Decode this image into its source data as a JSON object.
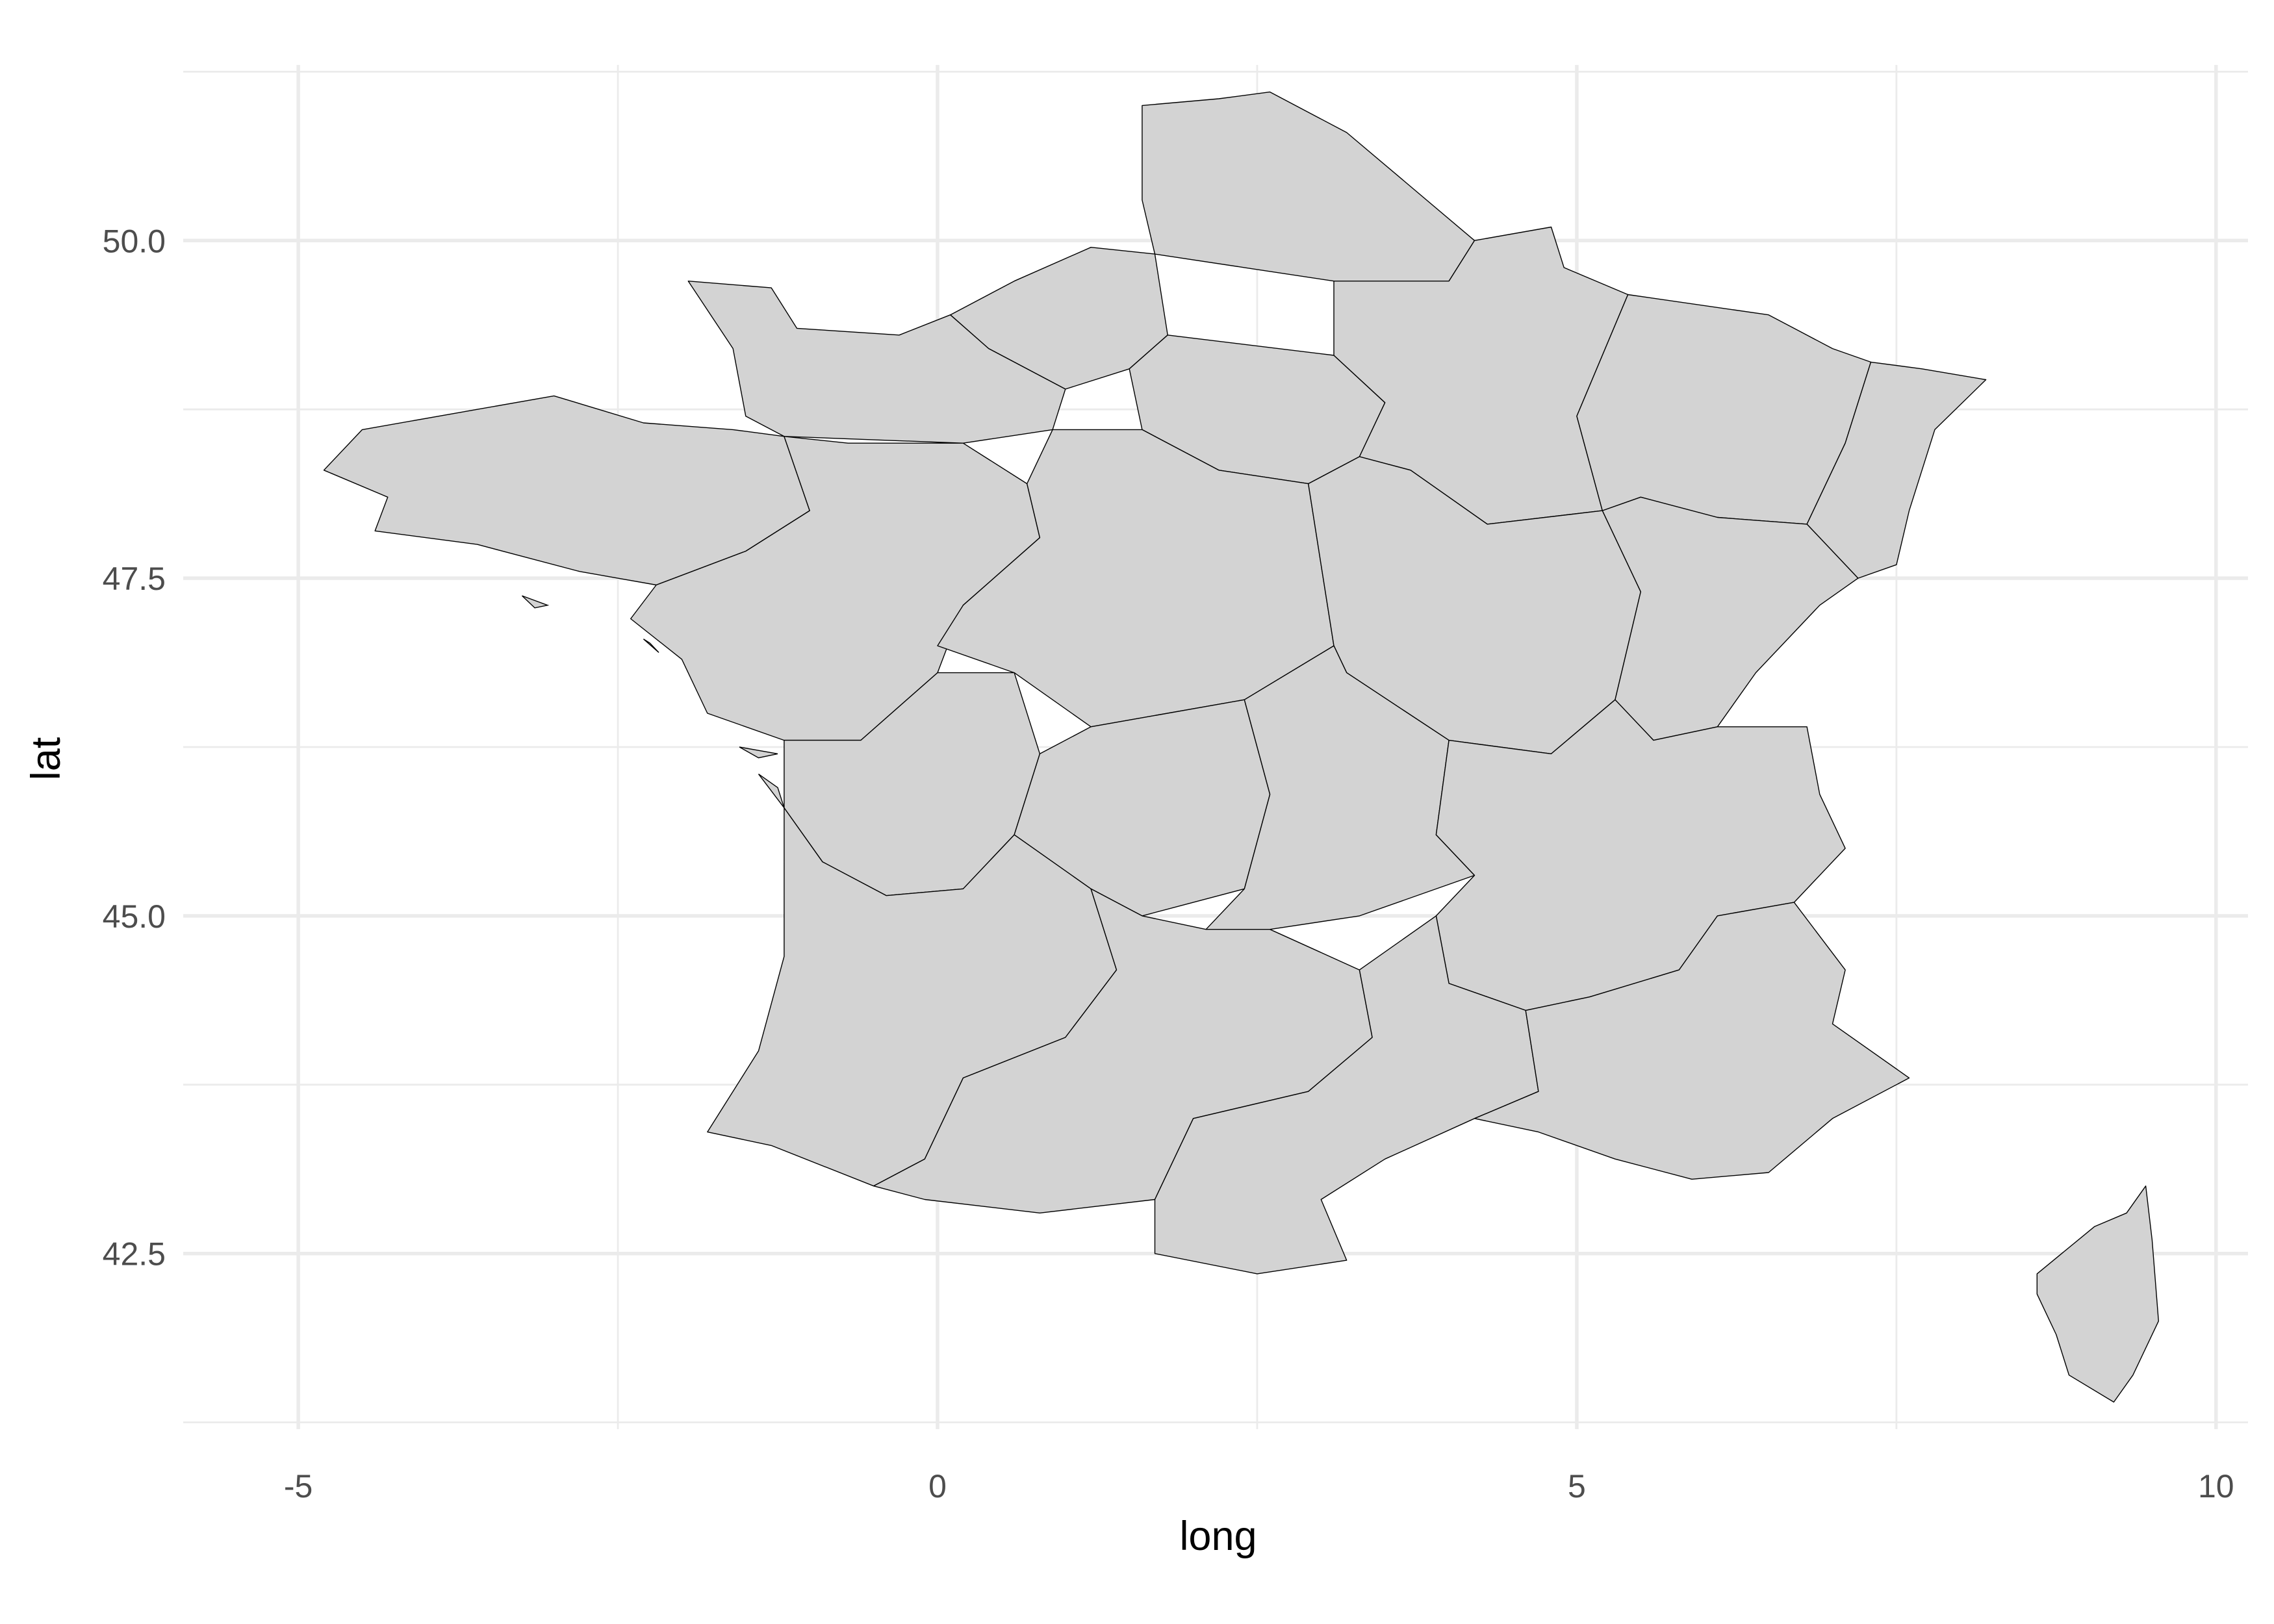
{
  "chart_data": {
    "type": "map",
    "title": "",
    "xlabel": "long",
    "ylabel": "lat",
    "xlim": [
      -5.9,
      10.25
    ],
    "ylim": [
      41.2,
      51.3
    ],
    "x_ticks": [
      -5,
      0,
      5,
      10
    ],
    "x_tick_labels": [
      "-5",
      "0",
      "5",
      "10"
    ],
    "x_minor_ticks": [
      -2.5,
      2.5,
      7.5
    ],
    "y_ticks": [
      42.5,
      45.0,
      47.5,
      50.0
    ],
    "y_tick_labels": [
      "42.5",
      "45.0",
      "47.5",
      "50.0"
    ],
    "y_minor_ticks": [
      41.25,
      43.75,
      46.25,
      48.75,
      51.25
    ],
    "grid": true,
    "fill_color": "#d3d3d3",
    "border_color": "#000000",
    "regions": [
      {
        "id": "nord-picardie",
        "outline": [
          [
            1.6,
            51.0
          ],
          [
            2.2,
            51.05
          ],
          [
            2.6,
            51.1
          ],
          [
            3.2,
            50.8
          ],
          [
            3.7,
            50.4
          ],
          [
            4.2,
            50.0
          ],
          [
            4.0,
            49.7
          ],
          [
            3.1,
            49.7
          ],
          [
            2.4,
            49.8
          ],
          [
            1.7,
            49.9
          ],
          [
            1.6,
            50.3
          ],
          [
            1.6,
            51.0
          ]
        ]
      },
      {
        "id": "haute-normandie",
        "outline": [
          [
            0.1,
            49.45
          ],
          [
            0.6,
            49.7
          ],
          [
            1.2,
            49.95
          ],
          [
            1.7,
            49.9
          ],
          [
            1.8,
            49.3
          ],
          [
            1.5,
            49.05
          ],
          [
            1.0,
            48.9
          ],
          [
            0.4,
            49.2
          ],
          [
            0.1,
            49.45
          ]
        ]
      },
      {
        "id": "basse-normandie",
        "outline": [
          [
            -1.95,
            49.7
          ],
          [
            -1.3,
            49.65
          ],
          [
            -1.1,
            49.35
          ],
          [
            -0.3,
            49.3
          ],
          [
            0.1,
            49.45
          ],
          [
            0.4,
            49.2
          ],
          [
            1.0,
            48.9
          ],
          [
            0.9,
            48.6
          ],
          [
            0.2,
            48.5
          ],
          [
            -1.2,
            48.55
          ],
          [
            -1.5,
            48.7
          ],
          [
            -1.6,
            49.2
          ],
          [
            -1.95,
            49.7
          ]
        ]
      },
      {
        "id": "bretagne",
        "outline": [
          [
            -1.6,
            48.6
          ],
          [
            -2.3,
            48.65
          ],
          [
            -3.0,
            48.85
          ],
          [
            -3.6,
            48.75
          ],
          [
            -4.5,
            48.6
          ],
          [
            -4.8,
            48.3
          ],
          [
            -4.3,
            48.1
          ],
          [
            -4.4,
            47.85
          ],
          [
            -3.6,
            47.75
          ],
          [
            -2.8,
            47.55
          ],
          [
            -2.2,
            47.45
          ],
          [
            -1.5,
            47.7
          ],
          [
            -1.0,
            48.0
          ],
          [
            -1.2,
            48.55
          ],
          [
            -1.6,
            48.6
          ]
        ]
      },
      {
        "id": "pays-de-la-loire",
        "outline": [
          [
            -1.2,
            48.55
          ],
          [
            -1.0,
            48.0
          ],
          [
            -1.5,
            47.7
          ],
          [
            -2.2,
            47.45
          ],
          [
            -2.4,
            47.2
          ],
          [
            -2.0,
            46.9
          ],
          [
            -1.8,
            46.5
          ],
          [
            -1.2,
            46.3
          ],
          [
            -0.6,
            46.3
          ],
          [
            0.0,
            46.8
          ],
          [
            0.2,
            47.3
          ],
          [
            0.8,
            47.8
          ],
          [
            0.7,
            48.2
          ],
          [
            0.2,
            48.5
          ],
          [
            -0.7,
            48.5
          ],
          [
            -1.2,
            48.55
          ]
        ]
      },
      {
        "id": "ile-de-france",
        "outline": [
          [
            1.5,
            49.05
          ],
          [
            1.8,
            49.3
          ],
          [
            3.1,
            49.15
          ],
          [
            3.5,
            48.8
          ],
          [
            3.3,
            48.4
          ],
          [
            2.9,
            48.2
          ],
          [
            2.2,
            48.3
          ],
          [
            1.6,
            48.6
          ],
          [
            1.5,
            49.05
          ]
        ]
      },
      {
        "id": "centre",
        "outline": [
          [
            0.9,
            48.6
          ],
          [
            1.6,
            48.6
          ],
          [
            2.2,
            48.3
          ],
          [
            2.9,
            48.2
          ],
          [
            3.0,
            47.6
          ],
          [
            3.1,
            47.0
          ],
          [
            2.4,
            46.6
          ],
          [
            1.2,
            46.4
          ],
          [
            0.6,
            46.8
          ],
          [
            0.0,
            47.0
          ],
          [
            0.2,
            47.3
          ],
          [
            0.8,
            47.8
          ],
          [
            0.7,
            48.2
          ],
          [
            0.9,
            48.6
          ]
        ]
      },
      {
        "id": "champagne-ardenne",
        "outline": [
          [
            4.2,
            50.0
          ],
          [
            4.8,
            50.1
          ],
          [
            4.9,
            49.8
          ],
          [
            5.4,
            49.6
          ],
          [
            5.0,
            48.7
          ],
          [
            5.2,
            48.0
          ],
          [
            4.3,
            47.9
          ],
          [
            3.7,
            48.3
          ],
          [
            3.3,
            48.4
          ],
          [
            3.5,
            48.8
          ],
          [
            3.1,
            49.15
          ],
          [
            3.1,
            49.7
          ],
          [
            4.0,
            49.7
          ],
          [
            4.2,
            50.0
          ]
        ]
      },
      {
        "id": "lorraine",
        "outline": [
          [
            5.4,
            49.6
          ],
          [
            6.5,
            49.45
          ],
          [
            7.0,
            49.2
          ],
          [
            7.3,
            49.1
          ],
          [
            7.1,
            48.5
          ],
          [
            6.8,
            47.9
          ],
          [
            6.1,
            47.95
          ],
          [
            5.5,
            48.1
          ],
          [
            5.2,
            48.0
          ],
          [
            5.0,
            48.7
          ],
          [
            5.4,
            49.6
          ]
        ]
      },
      {
        "id": "alsace",
        "outline": [
          [
            7.3,
            49.1
          ],
          [
            7.7,
            49.05
          ],
          [
            8.2,
            48.97
          ],
          [
            7.8,
            48.6
          ],
          [
            7.6,
            48.0
          ],
          [
            7.5,
            47.6
          ],
          [
            7.2,
            47.5
          ],
          [
            6.8,
            47.9
          ],
          [
            7.1,
            48.5
          ],
          [
            7.3,
            49.1
          ]
        ]
      },
      {
        "id": "bourgogne",
        "outline": [
          [
            2.9,
            48.2
          ],
          [
            3.3,
            48.4
          ],
          [
            3.7,
            48.3
          ],
          [
            4.3,
            47.9
          ],
          [
            5.2,
            48.0
          ],
          [
            5.5,
            47.4
          ],
          [
            5.3,
            46.6
          ],
          [
            4.8,
            46.2
          ],
          [
            4.0,
            46.3
          ],
          [
            3.2,
            46.8
          ],
          [
            3.1,
            47.0
          ],
          [
            3.0,
            47.6
          ],
          [
            2.9,
            48.2
          ]
        ]
      },
      {
        "id": "franche-comte",
        "outline": [
          [
            5.2,
            48.0
          ],
          [
            5.5,
            48.1
          ],
          [
            6.1,
            47.95
          ],
          [
            6.8,
            47.9
          ],
          [
            7.2,
            47.5
          ],
          [
            6.9,
            47.3
          ],
          [
            6.4,
            46.8
          ],
          [
            6.1,
            46.4
          ],
          [
            5.6,
            46.3
          ],
          [
            5.3,
            46.6
          ],
          [
            5.5,
            47.4
          ],
          [
            5.2,
            48.0
          ]
        ]
      },
      {
        "id": "poitou-charentes",
        "outline": [
          [
            -1.2,
            46.3
          ],
          [
            -0.6,
            46.3
          ],
          [
            0.0,
            46.8
          ],
          [
            0.6,
            46.8
          ],
          [
            0.8,
            46.2
          ],
          [
            0.6,
            45.6
          ],
          [
            0.2,
            45.2
          ],
          [
            -0.4,
            45.15
          ],
          [
            -0.9,
            45.4
          ],
          [
            -1.2,
            45.8
          ],
          [
            -1.2,
            46.3
          ]
        ]
      },
      {
        "id": "limousin",
        "outline": [
          [
            0.8,
            46.2
          ],
          [
            1.2,
            46.4
          ],
          [
            2.4,
            46.6
          ],
          [
            2.6,
            45.9
          ],
          [
            2.4,
            45.2
          ],
          [
            1.6,
            45.0
          ],
          [
            1.2,
            45.2
          ],
          [
            0.6,
            45.6
          ],
          [
            0.8,
            46.2
          ]
        ]
      },
      {
        "id": "auvergne",
        "outline": [
          [
            2.4,
            46.6
          ],
          [
            3.1,
            47.0
          ],
          [
            3.2,
            46.8
          ],
          [
            4.0,
            46.3
          ],
          [
            3.9,
            45.6
          ],
          [
            4.2,
            45.3
          ],
          [
            3.3,
            45.0
          ],
          [
            2.6,
            44.9
          ],
          [
            2.1,
            44.9
          ],
          [
            2.4,
            45.2
          ],
          [
            2.6,
            45.9
          ],
          [
            2.4,
            46.6
          ]
        ]
      },
      {
        "id": "rhone-alpes",
        "outline": [
          [
            4.0,
            46.3
          ],
          [
            4.8,
            46.2
          ],
          [
            5.3,
            46.6
          ],
          [
            5.6,
            46.3
          ],
          [
            6.1,
            46.4
          ],
          [
            6.8,
            46.4
          ],
          [
            6.9,
            45.9
          ],
          [
            7.1,
            45.5
          ],
          [
            6.7,
            45.1
          ],
          [
            6.1,
            45.0
          ],
          [
            5.8,
            44.6
          ],
          [
            5.1,
            44.4
          ],
          [
            4.6,
            44.3
          ],
          [
            4.0,
            44.5
          ],
          [
            3.9,
            45.0
          ],
          [
            4.2,
            45.3
          ],
          [
            3.9,
            45.6
          ],
          [
            4.0,
            46.3
          ]
        ]
      },
      {
        "id": "aquitaine",
        "outline": [
          [
            -1.2,
            45.8
          ],
          [
            -0.9,
            45.4
          ],
          [
            -0.4,
            45.15
          ],
          [
            0.2,
            45.2
          ],
          [
            0.6,
            45.6
          ],
          [
            1.2,
            45.2
          ],
          [
            1.4,
            44.6
          ],
          [
            1.0,
            44.1
          ],
          [
            0.2,
            43.8
          ],
          [
            -0.1,
            43.2
          ],
          [
            -0.5,
            43.0
          ],
          [
            -1.3,
            43.3
          ],
          [
            -1.8,
            43.4
          ],
          [
            -1.4,
            44.0
          ],
          [
            -1.2,
            44.7
          ],
          [
            -1.2,
            45.8
          ]
        ]
      },
      {
        "id": "midi-pyrenees",
        "outline": [
          [
            0.2,
            43.8
          ],
          [
            1.0,
            44.1
          ],
          [
            1.4,
            44.6
          ],
          [
            1.2,
            45.2
          ],
          [
            1.6,
            45.0
          ],
          [
            2.1,
            44.9
          ],
          [
            2.6,
            44.9
          ],
          [
            3.3,
            44.6
          ],
          [
            3.4,
            44.1
          ],
          [
            2.9,
            43.7
          ],
          [
            2.0,
            43.5
          ],
          [
            1.7,
            42.9
          ],
          [
            0.8,
            42.8
          ],
          [
            -0.1,
            42.9
          ],
          [
            -0.5,
            43.0
          ],
          [
            -0.1,
            43.2
          ],
          [
            0.2,
            43.8
          ]
        ]
      },
      {
        "id": "languedoc-roussillon",
        "outline": [
          [
            2.0,
            43.5
          ],
          [
            2.9,
            43.7
          ],
          [
            3.4,
            44.1
          ],
          [
            3.3,
            44.6
          ],
          [
            3.9,
            45.0
          ],
          [
            4.0,
            44.5
          ],
          [
            4.6,
            44.3
          ],
          [
            4.7,
            43.7
          ],
          [
            4.2,
            43.5
          ],
          [
            3.5,
            43.2
          ],
          [
            3.0,
            42.9
          ],
          [
            3.2,
            42.45
          ],
          [
            2.5,
            42.35
          ],
          [
            1.7,
            42.5
          ],
          [
            1.7,
            42.9
          ],
          [
            2.0,
            43.5
          ]
        ]
      },
      {
        "id": "paca",
        "outline": [
          [
            4.6,
            44.3
          ],
          [
            5.1,
            44.4
          ],
          [
            5.8,
            44.6
          ],
          [
            6.1,
            45.0
          ],
          [
            6.7,
            45.1
          ],
          [
            7.1,
            44.6
          ],
          [
            7.0,
            44.2
          ],
          [
            7.6,
            43.8
          ],
          [
            7.0,
            43.5
          ],
          [
            6.5,
            43.1
          ],
          [
            5.9,
            43.05
          ],
          [
            5.3,
            43.2
          ],
          [
            4.7,
            43.4
          ],
          [
            4.2,
            43.5
          ],
          [
            4.7,
            43.7
          ],
          [
            4.6,
            44.3
          ]
        ]
      },
      {
        "id": "corse",
        "outline": [
          [
            9.45,
            43.0
          ],
          [
            9.5,
            42.6
          ],
          [
            9.55,
            42.0
          ],
          [
            9.35,
            41.6
          ],
          [
            9.2,
            41.4
          ],
          [
            8.85,
            41.6
          ],
          [
            8.75,
            41.9
          ],
          [
            8.6,
            42.2
          ],
          [
            8.6,
            42.35
          ],
          [
            9.05,
            42.7
          ],
          [
            9.3,
            42.8
          ],
          [
            9.45,
            43.0
          ]
        ]
      }
    ],
    "islands": [
      {
        "id": "ile-de-re",
        "outline": [
          [
            -1.55,
            46.25
          ],
          [
            -1.25,
            46.2
          ],
          [
            -1.4,
            46.17
          ],
          [
            -1.55,
            46.25
          ]
        ]
      },
      {
        "id": "ile-d-oleron",
        "outline": [
          [
            -1.4,
            46.05
          ],
          [
            -1.2,
            45.8
          ],
          [
            -1.25,
            45.95
          ],
          [
            -1.4,
            46.05
          ]
        ]
      },
      {
        "id": "belle-ile",
        "outline": [
          [
            -3.25,
            47.37
          ],
          [
            -3.05,
            47.3
          ],
          [
            -3.15,
            47.28
          ],
          [
            -3.25,
            47.37
          ]
        ]
      },
      {
        "id": "noirmoutier",
        "outline": [
          [
            -2.3,
            47.05
          ],
          [
            -2.18,
            46.95
          ],
          [
            -2.25,
            47.02
          ],
          [
            -2.3,
            47.05
          ]
        ]
      }
    ]
  }
}
